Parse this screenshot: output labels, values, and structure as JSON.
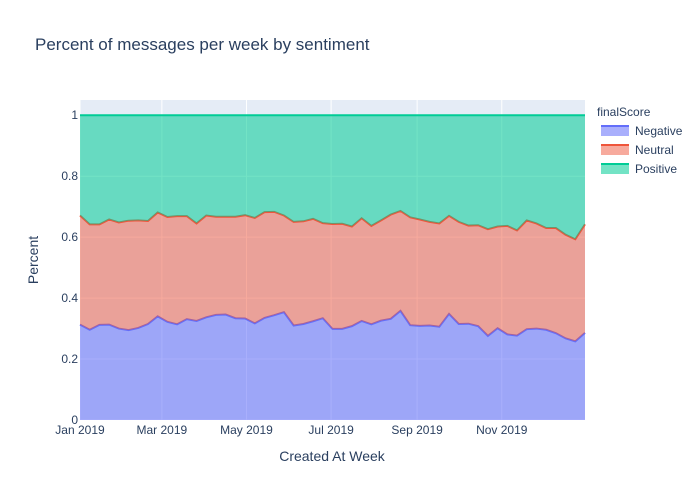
{
  "chart_data": {
    "type": "area",
    "stacked": true,
    "title": "Percent of messages per week by sentiment",
    "xlabel": "Created At Week",
    "ylabel": "Percent",
    "ylim": [
      0,
      1.05
    ],
    "xlim": [
      "2019-01-01",
      "2019-12-31"
    ],
    "x_ticks": [
      {
        "date": "2019-01-01",
        "label": "Jan 2019"
      },
      {
        "date": "2019-03-01",
        "label": "Mar 2019"
      },
      {
        "date": "2019-05-01",
        "label": "May 2019"
      },
      {
        "date": "2019-07-01",
        "label": "Jul 2019"
      },
      {
        "date": "2019-09-01",
        "label": "Sep 2019"
      },
      {
        "date": "2019-11-01",
        "label": "Nov 2019"
      }
    ],
    "y_ticks": [
      0,
      0.2,
      0.4,
      0.6,
      0.8,
      1
    ],
    "grid": true,
    "legend": {
      "title": "finalScore",
      "position": "right"
    },
    "x": [
      "2019-01-01",
      "2019-01-08",
      "2019-01-15",
      "2019-01-22",
      "2019-01-29",
      "2019-02-05",
      "2019-02-12",
      "2019-02-19",
      "2019-02-26",
      "2019-03-05",
      "2019-03-12",
      "2019-03-19",
      "2019-03-26",
      "2019-04-02",
      "2019-04-09",
      "2019-04-16",
      "2019-04-23",
      "2019-04-30",
      "2019-05-07",
      "2019-05-14",
      "2019-05-21",
      "2019-05-28",
      "2019-06-04",
      "2019-06-11",
      "2019-06-18",
      "2019-06-25",
      "2019-07-02",
      "2019-07-09",
      "2019-07-16",
      "2019-07-23",
      "2019-07-30",
      "2019-08-06",
      "2019-08-13",
      "2019-08-20",
      "2019-08-27",
      "2019-09-03",
      "2019-09-10",
      "2019-09-17",
      "2019-09-24",
      "2019-10-01",
      "2019-10-08",
      "2019-10-15",
      "2019-10-22",
      "2019-10-29",
      "2019-11-05",
      "2019-11-12",
      "2019-11-19",
      "2019-11-26",
      "2019-12-03",
      "2019-12-10",
      "2019-12-17",
      "2019-12-24",
      "2019-12-31"
    ],
    "series": [
      {
        "name": "Negative",
        "color": "#636efa",
        "values": [
          0.313,
          0.296,
          0.312,
          0.313,
          0.3,
          0.295,
          0.302,
          0.315,
          0.34,
          0.322,
          0.314,
          0.331,
          0.325,
          0.337,
          0.345,
          0.346,
          0.334,
          0.333,
          0.317,
          0.335,
          0.344,
          0.354,
          0.31,
          0.315,
          0.324,
          0.334,
          0.299,
          0.299,
          0.308,
          0.325,
          0.314,
          0.326,
          0.332,
          0.358,
          0.311,
          0.309,
          0.31,
          0.306,
          0.348,
          0.315,
          0.316,
          0.308,
          0.276,
          0.301,
          0.281,
          0.277,
          0.298,
          0.3,
          0.296,
          0.285,
          0.268,
          0.258,
          0.286
        ]
      },
      {
        "name": "Neutral",
        "color": "#ef553b",
        "values": [
          0.358,
          0.346,
          0.33,
          0.345,
          0.348,
          0.359,
          0.353,
          0.338,
          0.341,
          0.344,
          0.355,
          0.338,
          0.32,
          0.334,
          0.322,
          0.321,
          0.333,
          0.339,
          0.346,
          0.347,
          0.339,
          0.317,
          0.34,
          0.337,
          0.336,
          0.312,
          0.344,
          0.345,
          0.327,
          0.337,
          0.323,
          0.329,
          0.342,
          0.328,
          0.354,
          0.349,
          0.34,
          0.339,
          0.322,
          0.335,
          0.322,
          0.331,
          0.35,
          0.334,
          0.356,
          0.345,
          0.357,
          0.345,
          0.334,
          0.345,
          0.34,
          0.335,
          0.356
        ]
      },
      {
        "name": "Positive",
        "color": "#00cc96",
        "values": [
          0.329,
          0.358,
          0.358,
          0.342,
          0.352,
          0.346,
          0.345,
          0.347,
          0.319,
          0.334,
          0.331,
          0.331,
          0.355,
          0.329,
          0.333,
          0.333,
          0.333,
          0.328,
          0.337,
          0.318,
          0.317,
          0.329,
          0.35,
          0.348,
          0.34,
          0.354,
          0.357,
          0.356,
          0.365,
          0.338,
          0.363,
          0.345,
          0.326,
          0.314,
          0.335,
          0.342,
          0.35,
          0.355,
          0.33,
          0.35,
          0.362,
          0.361,
          0.374,
          0.365,
          0.363,
          0.378,
          0.345,
          0.355,
          0.37,
          0.37,
          0.392,
          0.407,
          0.358
        ]
      }
    ]
  }
}
